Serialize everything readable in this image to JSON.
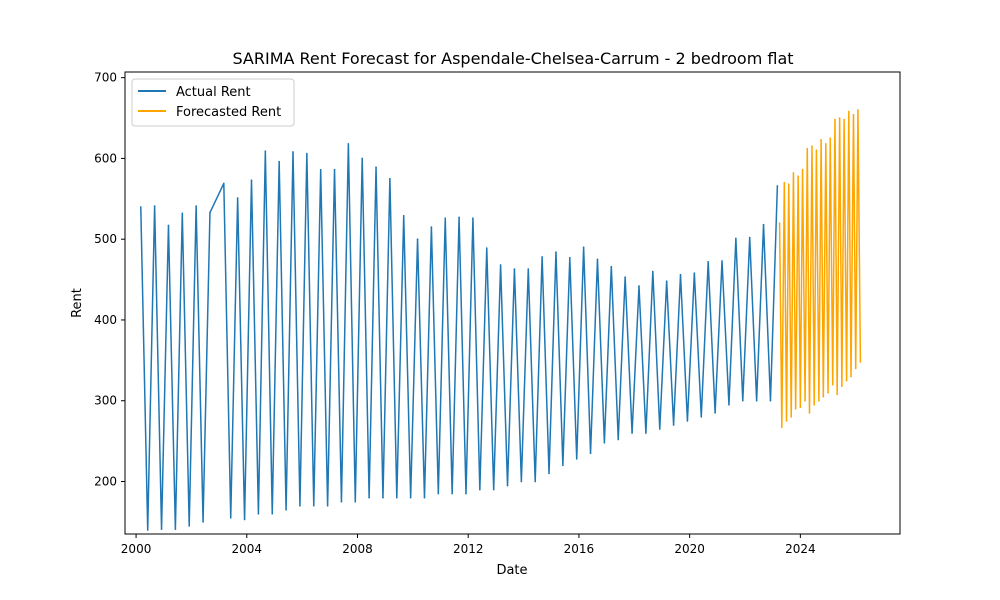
{
  "chart_data": {
    "type": "line",
    "title": "SARIMA Rent Forecast for Aspendale-Chelsea-Carrum - 2 bedroom flat",
    "xlabel": "Date",
    "ylabel": "Rent",
    "xlim": [
      1999.6,
      2027.6
    ],
    "ylim": [
      135,
      707
    ],
    "x_ticks": [
      2000,
      2004,
      2008,
      2012,
      2016,
      2020,
      2024
    ],
    "x_tick_labels": [
      "2000",
      "2004",
      "2008",
      "2012",
      "2016",
      "2020",
      "2024"
    ],
    "y_ticks": [
      200,
      300,
      400,
      500,
      600,
      700
    ],
    "y_tick_labels": [
      "200",
      "300",
      "400",
      "500",
      "600",
      "700"
    ],
    "grid": false,
    "legend_position": "top-left",
    "series": [
      {
        "name": "Actual Rent",
        "color": "#1f77b4",
        "x": [
          2000.17,
          2000.42,
          2000.67,
          2000.92,
          2001.17,
          2001.42,
          2001.67,
          2001.92,
          2002.17,
          2002.42,
          2002.67,
          2003.17,
          2003.42,
          2003.67,
          2003.92,
          2004.17,
          2004.42,
          2004.67,
          2004.92,
          2005.17,
          2005.42,
          2005.67,
          2005.92,
          2006.17,
          2006.42,
          2006.67,
          2006.92,
          2007.17,
          2007.42,
          2007.67,
          2007.92,
          2008.17,
          2008.42,
          2008.67,
          2008.92,
          2009.17,
          2009.42,
          2009.67,
          2009.92,
          2010.17,
          2010.42,
          2010.67,
          2010.92,
          2011.17,
          2011.42,
          2011.67,
          2011.92,
          2012.17,
          2012.42,
          2012.67,
          2012.92,
          2013.17,
          2013.42,
          2013.67,
          2013.92,
          2014.17,
          2014.42,
          2014.67,
          2014.92,
          2015.17,
          2015.42,
          2015.67,
          2015.92,
          2016.17,
          2016.42,
          2016.67,
          2016.92,
          2017.17,
          2017.42,
          2017.67,
          2017.92,
          2018.17,
          2018.42,
          2018.67,
          2018.92,
          2019.17,
          2019.42,
          2019.67,
          2019.92,
          2020.17,
          2020.42,
          2020.67,
          2020.92,
          2021.17,
          2021.42,
          2021.67,
          2021.92,
          2022.17,
          2022.42,
          2022.67,
          2022.92,
          2023.17
        ],
        "values": [
          540,
          140,
          541,
          141,
          517,
          141,
          532,
          145,
          541,
          150,
          533,
          569,
          155,
          551,
          153,
          573,
          160,
          609,
          160,
          596,
          165,
          608,
          170,
          606,
          170,
          586,
          170,
          586,
          175,
          618,
          175,
          600,
          180,
          589,
          180,
          575,
          180,
          529,
          180,
          500,
          180,
          515,
          185,
          526,
          185,
          527,
          185,
          526,
          190,
          489,
          190,
          468,
          195,
          463,
          200,
          463,
          200,
          478,
          210,
          484,
          220,
          477,
          228,
          490,
          235,
          475,
          248,
          466,
          252,
          453,
          260,
          442,
          260,
          460,
          265,
          448,
          270,
          456,
          275,
          458,
          280,
          472,
          285,
          473,
          295,
          501,
          300,
          502,
          300,
          518,
          300,
          566
        ]
      },
      {
        "name": "Forecasted Rent",
        "color": "#ffa500",
        "x": [
          2023.25,
          2023.33,
          2023.42,
          2023.5,
          2023.58,
          2023.67,
          2023.75,
          2023.83,
          2023.92,
          2024.0,
          2024.08,
          2024.17,
          2024.25,
          2024.33,
          2024.42,
          2024.5,
          2024.58,
          2024.67,
          2024.75,
          2024.83,
          2024.92,
          2025.0,
          2025.08,
          2025.17,
          2025.25,
          2025.33,
          2025.42,
          2025.5,
          2025.58,
          2025.67,
          2025.75,
          2025.83,
          2025.92,
          2026.0,
          2026.08,
          2026.17
        ],
        "values": [
          520,
          267,
          570,
          275,
          568,
          280,
          582,
          290,
          578,
          292,
          586,
          300,
          612,
          285,
          615,
          295,
          610,
          300,
          623,
          305,
          618,
          310,
          625,
          320,
          648,
          308,
          650,
          318,
          648,
          325,
          658,
          330,
          654,
          340,
          660,
          348
        ]
      }
    ]
  }
}
